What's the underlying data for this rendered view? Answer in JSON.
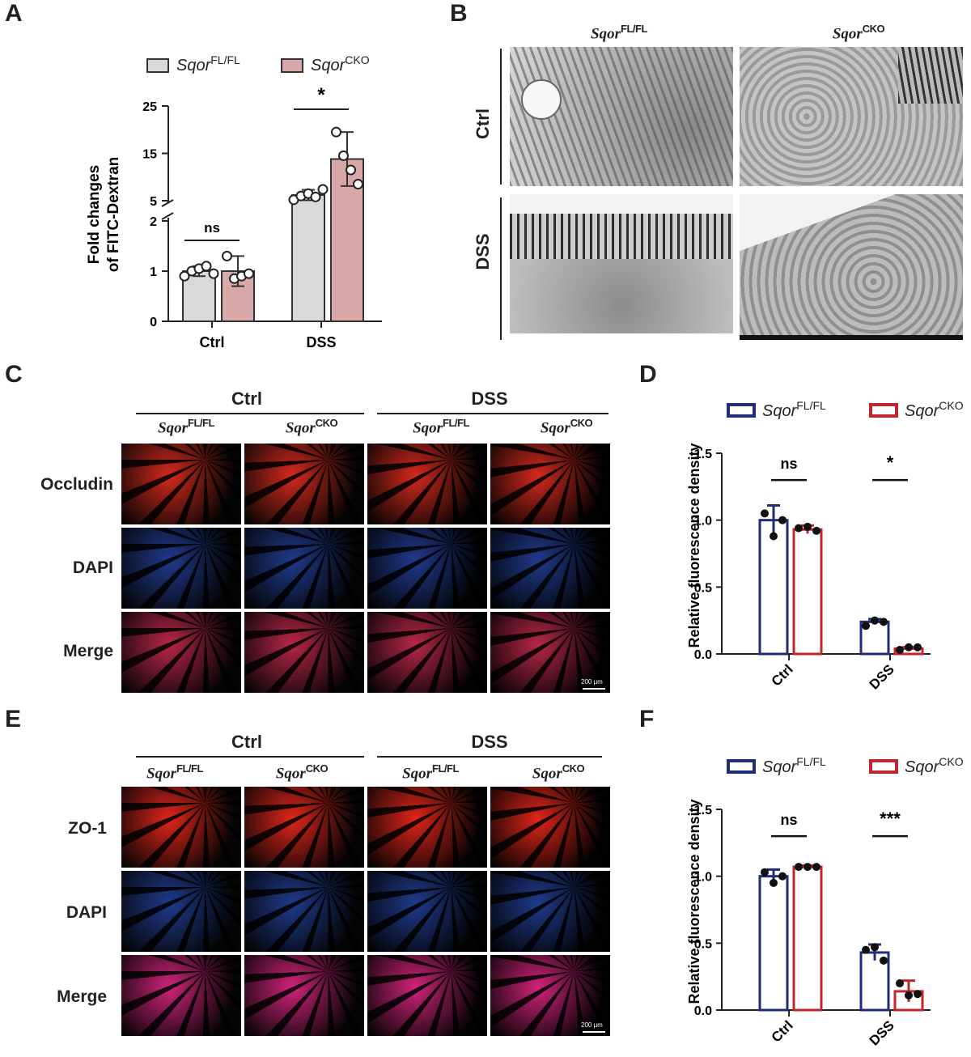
{
  "panels": {
    "A": "A",
    "B": "B",
    "C": "C",
    "D": "D",
    "E": "E",
    "F": "F"
  },
  "genotypes": {
    "base": "Sqor",
    "fl": "FL/FL",
    "cko": "CKO"
  },
  "groups": [
    "Ctrl",
    "DSS"
  ],
  "panel_b": {
    "col_heads": [
      "Sqor FL/FL",
      "Sqor CKO"
    ],
    "row_labels": [
      "Ctrl",
      "DSS"
    ]
  },
  "panel_c": {
    "group_heads": [
      "Ctrl",
      "DSS"
    ],
    "row_labels": [
      "Occludin",
      "DAPI",
      "Merge"
    ],
    "scale_bar": "200 μm"
  },
  "panel_e": {
    "group_heads": [
      "Ctrl",
      "DSS"
    ],
    "row_labels": [
      "ZO-1",
      "DAPI",
      "Merge"
    ],
    "scale_bar": "200 μm"
  },
  "colors": {
    "a_fl_fill": "#d9d9d9",
    "a_cko_fill": "#d8a8a8",
    "d_fl": "#1f2d7a",
    "d_cko": "#c0262b",
    "occludin": "#d42a1e",
    "dapi": "#1f3a8c",
    "zo1": "#e0251a"
  },
  "chart_data": [
    {
      "id": "A",
      "type": "bar",
      "ylabel": "Fold changes of FITC-Dextran",
      "categories": [
        "Ctrl",
        "DSS"
      ],
      "axis_break": {
        "lower": [
          0,
          2
        ],
        "upper": [
          2,
          25
        ]
      },
      "yticks_lower": [
        "0",
        "1",
        "2"
      ],
      "yticks_upper": [
        "5",
        "15",
        "25"
      ],
      "series": [
        {
          "name": "Sqor FL/FL",
          "values": [
            1.0,
            6.2
          ],
          "sd": [
            0.1,
            1.1
          ],
          "points": [
            [
              0.9,
              1.0,
              1.05,
              1.1,
              0.95
            ],
            [
              5.2,
              6.0,
              6.5,
              5.8,
              7.4
            ]
          ]
        },
        {
          "name": "Sqor CKO",
          "values": [
            1.0,
            13.8
          ],
          "sd": [
            0.3,
            5.7
          ],
          "points": [
            [
              1.3,
              0.85,
              0.9,
              0.95
            ],
            [
              19.5,
              14.5,
              11.5,
              8.5
            ]
          ]
        }
      ],
      "significance": [
        "ns",
        "*"
      ]
    },
    {
      "id": "D",
      "type": "bar",
      "ylabel": "Relative fluorescence density",
      "categories": [
        "Ctrl",
        "DSS"
      ],
      "ylim": [
        0,
        1.5
      ],
      "yticks": [
        "0.0",
        "0.5",
        "1.0",
        "1.5"
      ],
      "series": [
        {
          "name": "Sqor FL/FL",
          "values": [
            1.0,
            0.24
          ],
          "sd": [
            0.11,
            0.02
          ],
          "points": [
            [
              1.05,
              0.88,
              1.0
            ],
            [
              0.21,
              0.25,
              0.24
            ]
          ]
        },
        {
          "name": "Sqor CKO",
          "values": [
            0.93,
            0.04
          ],
          "sd": [
            0.03,
            0.01
          ],
          "points": [
            [
              0.94,
              0.95,
              0.92
            ],
            [
              0.03,
              0.05,
              0.05
            ]
          ]
        }
      ],
      "significance": [
        "ns",
        "*"
      ]
    },
    {
      "id": "F",
      "type": "bar",
      "ylabel": "Relative fluorescence density",
      "categories": [
        "Ctrl",
        "DSS"
      ],
      "ylim": [
        0,
        1.5
      ],
      "yticks": [
        "0.0",
        "0.5",
        "1.0",
        "1.5"
      ],
      "series": [
        {
          "name": "Sqor FL/FL",
          "values": [
            1.0,
            0.43
          ],
          "sd": [
            0.05,
            0.06
          ],
          "points": [
            [
              1.03,
              0.95,
              1.0
            ],
            [
              0.45,
              0.47,
              0.37
            ]
          ]
        },
        {
          "name": "Sqor CKO",
          "values": [
            1.07,
            0.14
          ],
          "sd": [
            0.01,
            0.08
          ],
          "points": [
            [
              1.07,
              1.07,
              1.07
            ],
            [
              0.2,
              0.11,
              0.12
            ]
          ]
        }
      ],
      "significance": [
        "ns",
        "***"
      ]
    }
  ]
}
